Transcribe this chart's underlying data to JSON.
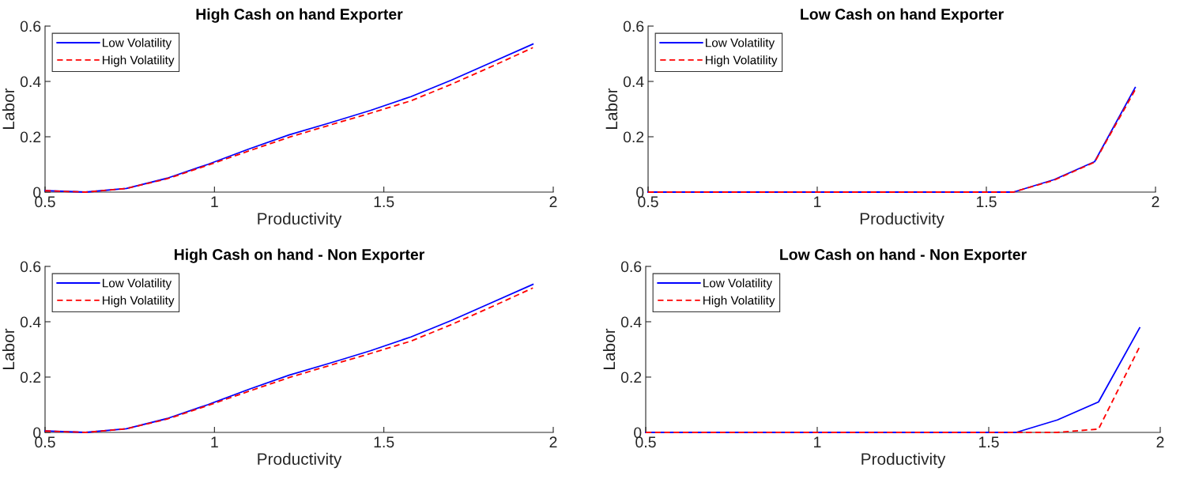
{
  "chart_data": [
    {
      "type": "line",
      "title": "High Cash on hand Exporter",
      "xlabel": "Productivity",
      "ylabel": "Labor",
      "x": [
        0.5,
        0.62,
        0.74,
        0.86,
        0.98,
        1.1,
        1.22,
        1.34,
        1.46,
        1.58,
        1.7,
        1.82,
        1.94
      ],
      "xlim": [
        0.5,
        2
      ],
      "xticks": [
        0.5,
        1,
        1.5,
        2
      ],
      "ylim": [
        0,
        0.6
      ],
      "yticks": [
        0,
        0.2,
        0.4,
        0.6
      ],
      "legend": "top left",
      "grid": false,
      "series": [
        {
          "name": "Low Volatility",
          "color": "#0000ff",
          "line_style": "solid",
          "values": [
            0.005,
            0,
            0.013,
            0.05,
            0.1,
            0.155,
            0.207,
            0.25,
            0.295,
            0.345,
            0.405,
            0.47,
            0.535
          ]
        },
        {
          "name": "High Volatility",
          "color": "#ff0000",
          "line_style": "dashed",
          "values": [
            0.005,
            0,
            0.013,
            0.048,
            0.097,
            0.148,
            0.198,
            0.242,
            0.285,
            0.33,
            0.39,
            0.455,
            0.522
          ]
        }
      ]
    },
    {
      "type": "line",
      "title": "Low Cash on hand Exporter",
      "xlabel": "Productivity",
      "ylabel": "Labor",
      "x": [
        0.5,
        0.62,
        0.74,
        0.86,
        0.98,
        1.1,
        1.22,
        1.34,
        1.46,
        1.58,
        1.7,
        1.82,
        1.94
      ],
      "xlim": [
        0.5,
        2
      ],
      "xticks": [
        0.5,
        1,
        1.5,
        2
      ],
      "ylim": [
        0,
        0.6
      ],
      "yticks": [
        0,
        0.2,
        0.4,
        0.6
      ],
      "legend": "top left",
      "grid": false,
      "series": [
        {
          "name": "Low Volatility",
          "color": "#0000ff",
          "line_style": "solid",
          "values": [
            0,
            0,
            0,
            0,
            0,
            0,
            0,
            0,
            0,
            0,
            0.045,
            0.11,
            0.378
          ]
        },
        {
          "name": "High Volatility",
          "color": "#ff0000",
          "line_style": "dashed",
          "values": [
            0,
            0,
            0,
            0,
            0,
            0,
            0,
            0,
            0,
            0,
            0.043,
            0.108,
            0.37
          ]
        }
      ]
    },
    {
      "type": "line",
      "title": "High Cash on hand - Non Exporter",
      "xlabel": "Productivity",
      "ylabel": "Labor",
      "x": [
        0.5,
        0.62,
        0.74,
        0.86,
        0.98,
        1.1,
        1.22,
        1.34,
        1.46,
        1.58,
        1.7,
        1.82,
        1.94
      ],
      "xlim": [
        0.5,
        2
      ],
      "xticks": [
        0.5,
        1,
        1.5,
        2
      ],
      "ylim": [
        0,
        0.6
      ],
      "yticks": [
        0,
        0.2,
        0.4,
        0.6
      ],
      "legend": "top left",
      "grid": false,
      "series": [
        {
          "name": "Low Volatility",
          "color": "#0000ff",
          "line_style": "solid",
          "values": [
            0.005,
            0,
            0.013,
            0.05,
            0.1,
            0.155,
            0.207,
            0.25,
            0.295,
            0.345,
            0.405,
            0.47,
            0.535
          ]
        },
        {
          "name": "High Volatility",
          "color": "#ff0000",
          "line_style": "dashed",
          "values": [
            0.005,
            0,
            0.013,
            0.048,
            0.097,
            0.148,
            0.198,
            0.242,
            0.285,
            0.33,
            0.39,
            0.455,
            0.522
          ]
        }
      ]
    },
    {
      "type": "line",
      "title": "Low Cash on hand - Non Exporter",
      "xlabel": "Productivity",
      "ylabel": "Labor",
      "x": [
        0.5,
        0.62,
        0.74,
        0.86,
        0.98,
        1.1,
        1.22,
        1.34,
        1.46,
        1.58,
        1.7,
        1.82,
        1.94
      ],
      "xlim": [
        0.5,
        2
      ],
      "xticks": [
        0.5,
        1,
        1.5,
        2
      ],
      "ylim": [
        0,
        0.6
      ],
      "yticks": [
        0,
        0.2,
        0.4,
        0.6
      ],
      "legend": "top left",
      "grid": false,
      "series": [
        {
          "name": "Low Volatility",
          "color": "#0000ff",
          "line_style": "solid",
          "values": [
            0,
            0,
            0,
            0,
            0,
            0,
            0,
            0,
            0,
            0,
            0.045,
            0.11,
            0.378
          ]
        },
        {
          "name": "High Volatility",
          "color": "#ff0000",
          "line_style": "dashed",
          "values": [
            0,
            0,
            0,
            0,
            0,
            0,
            0,
            0,
            0,
            0,
            0,
            0.012,
            0.31
          ]
        }
      ]
    }
  ]
}
